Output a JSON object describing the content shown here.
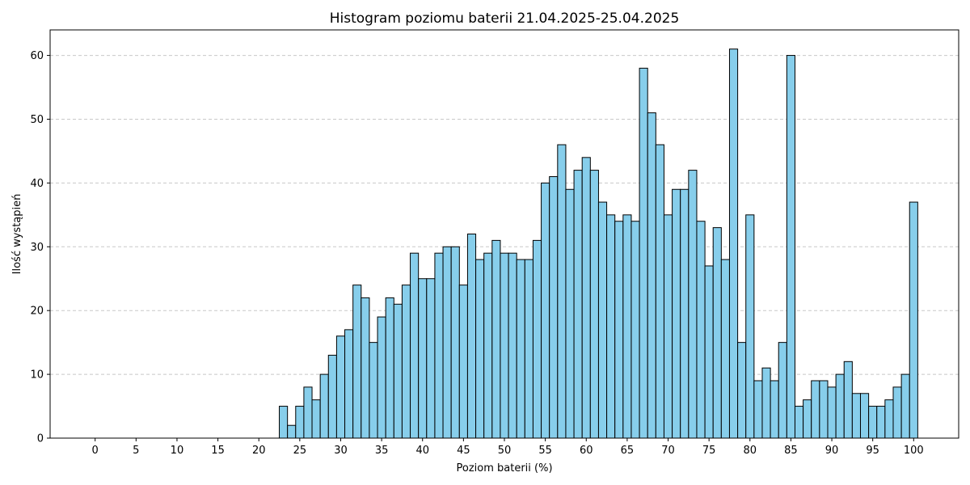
{
  "chart_data": {
    "type": "bar",
    "title": "Histogram poziomu baterii 21.04.2025-25.04.2025",
    "xlabel": "Poziom baterii (%)",
    "ylabel": "Ilość wystąpień",
    "xlim": [
      -5.5,
      105.5
    ],
    "ylim": [
      0,
      64
    ],
    "x_ticks": [
      0,
      5,
      10,
      15,
      20,
      25,
      30,
      35,
      40,
      45,
      50,
      55,
      60,
      65,
      70,
      75,
      80,
      85,
      90,
      95,
      100
    ],
    "y_ticks": [
      0,
      10,
      20,
      30,
      40,
      50,
      60
    ],
    "grid": "y-dashed",
    "bar_color": "#87ceeb",
    "edge_color": "#000000",
    "categories": [
      0,
      1,
      2,
      3,
      4,
      5,
      6,
      7,
      8,
      9,
      10,
      11,
      12,
      13,
      14,
      15,
      16,
      17,
      18,
      19,
      20,
      21,
      22,
      23,
      24,
      25,
      26,
      27,
      28,
      29,
      30,
      31,
      32,
      33,
      34,
      35,
      36,
      37,
      38,
      39,
      40,
      41,
      42,
      43,
      44,
      45,
      46,
      47,
      48,
      49,
      50,
      51,
      52,
      53,
      54,
      55,
      56,
      57,
      58,
      59,
      60,
      61,
      62,
      63,
      64,
      65,
      66,
      67,
      68,
      69,
      70,
      71,
      72,
      73,
      74,
      75,
      76,
      77,
      78,
      79,
      80,
      81,
      82,
      83,
      84,
      85,
      86,
      87,
      88,
      89,
      90,
      91,
      92,
      93,
      94,
      95,
      96,
      97,
      98,
      99,
      100
    ],
    "values": [
      0,
      0,
      0,
      0,
      0,
      0,
      0,
      0,
      0,
      0,
      0,
      0,
      0,
      0,
      0,
      0,
      0,
      0,
      0,
      0,
      0,
      0,
      0,
      5,
      2,
      5,
      8,
      6,
      10,
      13,
      16,
      17,
      24,
      22,
      15,
      19,
      22,
      21,
      24,
      29,
      25,
      25,
      29,
      30,
      30,
      24,
      32,
      28,
      29,
      31,
      29,
      29,
      28,
      28,
      31,
      40,
      41,
      46,
      39,
      42,
      44,
      42,
      37,
      35,
      34,
      35,
      34,
      58,
      51,
      46,
      35,
      39,
      39,
      42,
      34,
      27,
      33,
      28,
      61,
      15,
      35,
      9,
      11,
      9,
      15,
      60,
      5,
      6,
      9,
      9,
      8,
      10,
      12,
      7,
      7,
      5,
      5,
      6,
      8,
      10,
      37
    ]
  }
}
